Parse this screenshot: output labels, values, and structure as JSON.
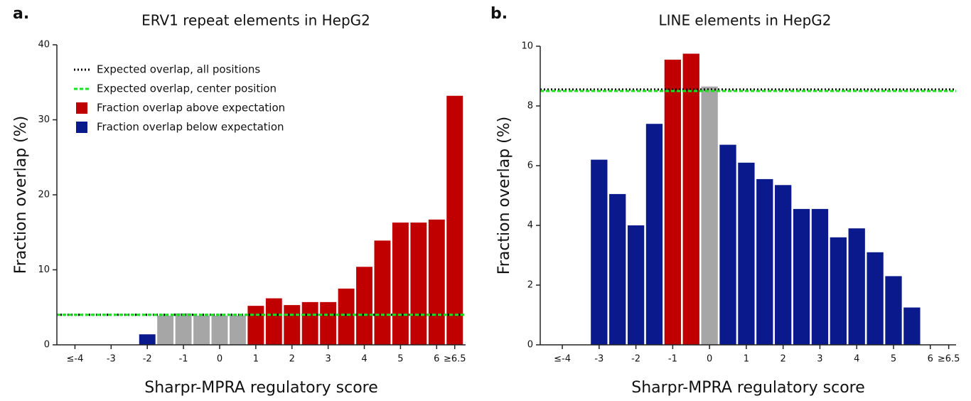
{
  "chart_data": [
    {
      "type": "bar",
      "panel": "a.",
      "title": "ERV1 repeat elements in HepG2",
      "xlabel": "Sharpr-MPRA regulatory score",
      "ylabel": "Fraction overlap (%)",
      "xlim": [
        -4.5,
        6.8
      ],
      "ylim": [
        0,
        40
      ],
      "yticks": [
        0,
        10,
        20,
        30,
        40
      ],
      "xticks": [
        {
          "value": -4,
          "label": "≤-4"
        },
        -3,
        -2,
        -1,
        0,
        1,
        2,
        3,
        4,
        5,
        6,
        {
          "value": 6.5,
          "label": "≥6.5"
        }
      ],
      "reference_lines": [
        {
          "name": "Expected overlap, all positions",
          "color": "#000000",
          "style": "dotted",
          "value": 4.0
        },
        {
          "name": "Expected overlap, center position",
          "color": "#22dd22",
          "style": "dashed",
          "value": 4.0
        }
      ],
      "series": [
        {
          "name": "Fraction overlap above expectation",
          "color": "#c00000",
          "x": [
            1,
            1.5,
            2,
            2.5,
            3,
            3.5,
            4,
            4.5,
            5,
            5.5,
            6,
            6.5
          ],
          "values": [
            5.2,
            6.2,
            5.3,
            5.7,
            5.7,
            7.5,
            10.4,
            13.9,
            16.3,
            16.3,
            16.7,
            33.2
          ]
        },
        {
          "name": "Fraction overlap below expectation",
          "color": "#0a1a8c",
          "x": [
            -2
          ],
          "values": [
            1.4
          ]
        },
        {
          "color": "#a6a6a6",
          "x": [
            -1.5,
            -1,
            -0.5,
            0,
            0.5
          ],
          "values": [
            3.9,
            4.2,
            3.9,
            3.9,
            3.9
          ]
        }
      ]
    },
    {
      "type": "bar",
      "panel": "b.",
      "title": "LINE elements in HepG2",
      "xlabel": "Sharpr-MPRA regulatory score",
      "ylabel": "Fraction overlap (%)",
      "xlim": [
        -4.6,
        6.7
      ],
      "ylim": [
        0,
        10
      ],
      "yticks": [
        0,
        2,
        4,
        6,
        8,
        10
      ],
      "xticks": [
        {
          "value": -4,
          "label": "≤-4"
        },
        -3,
        -2,
        -1,
        0,
        1,
        2,
        3,
        4,
        5,
        6,
        {
          "value": 6.5,
          "label": "≥6.5"
        }
      ],
      "reference_lines": [
        {
          "color": "#000000",
          "style": "dotted",
          "value": 8.55
        },
        {
          "color": "#22dd22",
          "style": "dashed",
          "value": 8.5
        }
      ],
      "series": [
        {
          "color": "#c00000",
          "x": [
            -1,
            -0.5
          ],
          "values": [
            9.55,
            9.75
          ]
        },
        {
          "color": "#0a1a8c",
          "x": [
            -3,
            -2.5,
            -2,
            -1.5,
            0.5,
            1,
            1.5,
            2,
            2.5,
            3,
            3.5,
            4,
            4.5,
            5,
            5.5
          ],
          "values": [
            6.2,
            5.05,
            4.0,
            7.4,
            6.7,
            6.1,
            5.55,
            5.35,
            4.55,
            4.55,
            3.6,
            3.9,
            3.1,
            2.3,
            1.25
          ]
        },
        {
          "color": "#a6a6a6",
          "x": [
            0
          ],
          "values": [
            8.65
          ]
        }
      ]
    }
  ]
}
